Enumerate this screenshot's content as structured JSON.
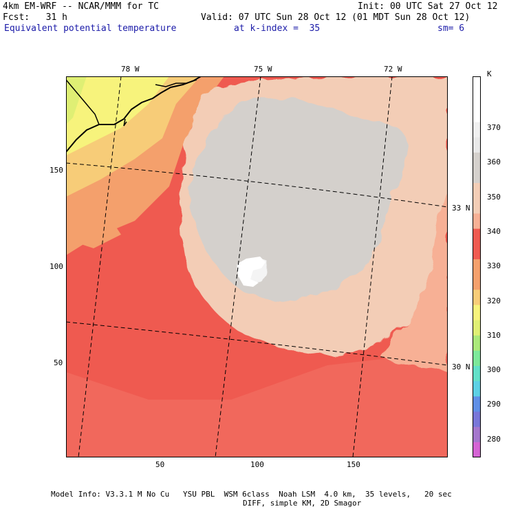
{
  "header": {
    "title_left": "4km EM-WRF -- NCAR/MMM for TC",
    "init": "Init: 00 UTC Sat 27 Oct 12",
    "fcst": "Fcst:   31 h",
    "valid": "Valid: 07 UTC Sun 28 Oct 12 (01 MDT Sun 28 Oct 12)",
    "field": "Equivalent potential temperature",
    "level": "at k-index =  35",
    "smooth": "sm= 6"
  },
  "map": {
    "lon_labels": [
      "78 W",
      "75 W",
      "72 W"
    ],
    "lat_labels": [
      "33 N",
      "30 N"
    ],
    "x_ticks": [
      "50",
      "100",
      "150"
    ],
    "y_ticks": [
      "150",
      "100",
      "50"
    ]
  },
  "colorbar": {
    "unit": "K",
    "levels": [
      "370",
      "360",
      "350",
      "340",
      "330",
      "320",
      "310",
      "300",
      "290",
      "280"
    ],
    "colors": [
      "#ffffff",
      "#ffffff",
      "#ffffff",
      "#f0f0f0",
      "#e8e8e8",
      "#d4d0cc",
      "#d4d0cc",
      "#f3cdb6",
      "#f3cdb6",
      "#f7b095",
      "#ef5a50",
      "#ef5a50",
      "#f4a06c",
      "#f4a06c",
      "#f7cc78",
      "#f7f37c",
      "#dfef74",
      "#aae87a",
      "#7ce89a",
      "#62e0c8",
      "#5cd0e4",
      "#5f8fe6",
      "#7876d8",
      "#a476cc",
      "#d464d4"
    ]
  },
  "footer": {
    "line1": "Model Info: V3.3.1 M No Cu   YSU PBL  WSM 6class  Noah LSM  4.0 km,  35 levels,   20 sec",
    "line2": "DIFF, simple KM, 2D Smagor"
  }
}
